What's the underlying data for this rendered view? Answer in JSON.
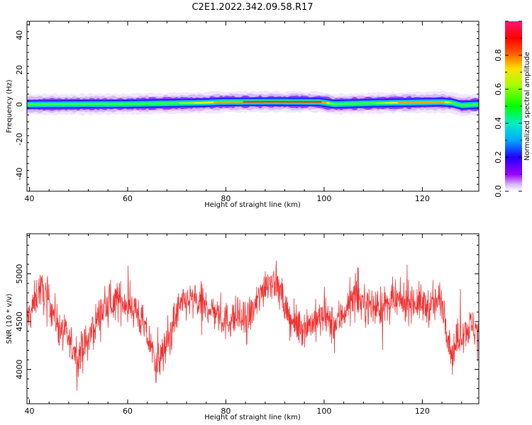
{
  "title": "C2E1.2022.342.09.58.R17",
  "colors": {
    "snr_line": "#f03030",
    "frame": "#000000"
  },
  "chart_data": [
    {
      "type": "heatmap",
      "xlabel": "Height of straight line (km)",
      "ylabel": "Frequency (Hz)",
      "xlim": [
        39.5,
        131.5
      ],
      "ylim": [
        -50,
        48
      ],
      "xticks": [
        40,
        60,
        80,
        100,
        120
      ],
      "yticks": [
        40,
        20,
        0,
        -20,
        -40
      ],
      "colorbar": {
        "label": "Normalized spectral amplitude",
        "ticks": [
          0.0,
          0.2,
          0.4,
          0.6,
          0.8
        ],
        "tick_labels": [
          "0.0",
          "0.2",
          "0.4",
          "0.6",
          "0.8"
        ],
        "range": [
          0,
          1
        ],
        "colormap": "rainbow (magenta-blue-cyan-green-yellow-red-pink)"
      },
      "band": {
        "center_hz": [
          [
            40,
            0
          ],
          [
            60,
            0.3
          ],
          [
            75,
            1.0
          ],
          [
            80,
            1.5
          ],
          [
            90,
            1.6
          ],
          [
            99,
            1.5
          ],
          [
            102,
            0.2
          ],
          [
            110,
            0.8
          ],
          [
            124,
            1.4
          ],
          [
            126,
            1.0
          ],
          [
            128,
            -0.5
          ],
          [
            131,
            0.0
          ]
        ],
        "description_peak_amplitude": [
          [
            40,
            0.55
          ],
          [
            55,
            0.55
          ],
          [
            70,
            0.6
          ],
          [
            80,
            0.85
          ],
          [
            90,
            0.95
          ],
          [
            99,
            0.9
          ],
          [
            102,
            0.55
          ],
          [
            110,
            0.6
          ],
          [
            115,
            0.8
          ],
          [
            124,
            0.8
          ],
          [
            126,
            0.6
          ],
          [
            131,
            0.55
          ]
        ]
      }
    },
    {
      "type": "line",
      "xlabel": "Height of straight line (km)",
      "ylabel": "SNR (10 * v/v)",
      "xlim": [
        39.5,
        131.5
      ],
      "ylim": [
        3640,
        5420
      ],
      "xticks": [
        40,
        60,
        80,
        100,
        120
      ],
      "yticks": [
        4000,
        4500,
        5000
      ],
      "trend": {
        "x": [
          40,
          42,
          44,
          46,
          48,
          50,
          52,
          54,
          56,
          58,
          60,
          62,
          64,
          66,
          68,
          70,
          72,
          74,
          76,
          78,
          80,
          82,
          84,
          86,
          88,
          90,
          92,
          94,
          96,
          98,
          100,
          102,
          104,
          106,
          108,
          110,
          112,
          114,
          116,
          118,
          120,
          122,
          124,
          126,
          128,
          130,
          131.5
        ],
        "y": [
          4550,
          4850,
          4720,
          4450,
          4300,
          4150,
          4300,
          4550,
          4680,
          4720,
          4700,
          4600,
          4350,
          4050,
          4250,
          4600,
          4720,
          4700,
          4650,
          4600,
          4500,
          4550,
          4500,
          4650,
          4900,
          4950,
          4650,
          4450,
          4450,
          4500,
          4550,
          4450,
          4600,
          4750,
          4700,
          4650,
          4650,
          4700,
          4700,
          4720,
          4680,
          4650,
          4750,
          4150,
          4400,
          4450,
          4400
        ]
      },
      "noise_amplitude": 170,
      "point_count": 1400
    }
  ]
}
